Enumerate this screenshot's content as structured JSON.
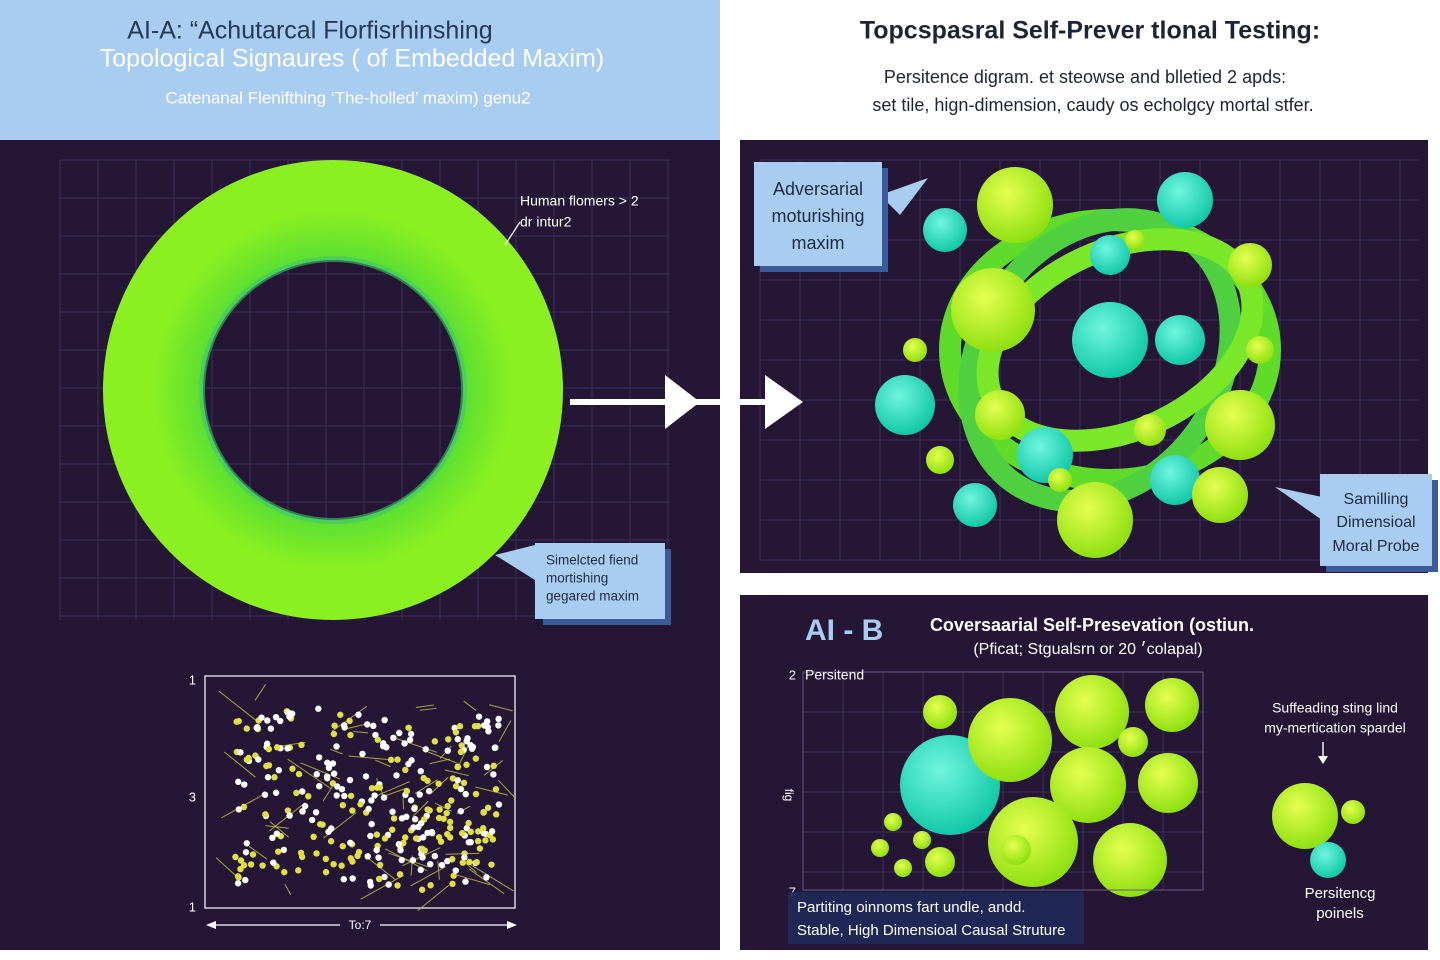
{
  "left_panel": {
    "title_line1": "AI-A: “Achutarcal Florfisrhinshing",
    "title_line2": "Topological Signaures ( of Embedded Maxim)",
    "subtitle": "Catenanal Flenifthing ‘The-holled’ maxim) genu2",
    "torus_annotation": [
      "Human flomers > 2",
      "dr intur2"
    ],
    "callout": [
      "Simelcted fiend",
      "mortishing",
      "gegared maxim"
    ],
    "plot": {
      "y_labels": [
        "1",
        "3",
        "1"
      ],
      "x_label": "To:7"
    }
  },
  "right_top": {
    "title": "Topcspasral Self-Prever tlonal Testing:",
    "subtitle_lines": [
      "Persitence digram. et steowse and blletied 2 apds:",
      "set tile, hign-dimension, caudy os echolgcy mortal stfer."
    ],
    "callout_left": [
      "Adversarial",
      "moturishing",
      "maxim"
    ],
    "callout_right": [
      "Samilling",
      "Dimensioal",
      "Moral Probe"
    ]
  },
  "right_bottom": {
    "label": "AI - B",
    "title": "Coversaarial Self-Presevation (ostiun.",
    "subtitle": "(Pficat; Stgualsrn or 20 ׳colapal)",
    "y_top": "2",
    "y_bottom": "7",
    "y_axis_label": "fig",
    "plot_label": "Persitend",
    "annotation": [
      "Suffeading sting lind",
      "my-mertication spardel"
    ],
    "legend": [
      "Persitencg",
      "poinels"
    ],
    "caption": [
      "Partiting oinnoms fart undle, andd.",
      "Stable, High Dimensioal Causal Struture"
    ]
  }
}
